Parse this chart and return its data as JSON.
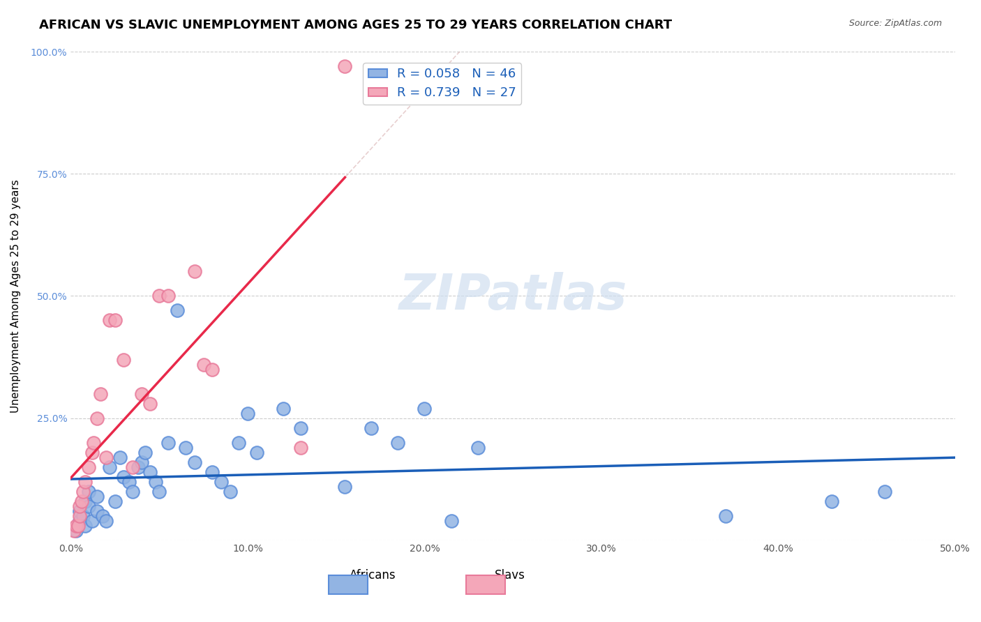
{
  "title": "AFRICAN VS SLAVIC UNEMPLOYMENT AMONG AGES 25 TO 29 YEARS CORRELATION CHART",
  "source": "Source: ZipAtlas.com",
  "xlabel": "",
  "ylabel": "Unemployment Among Ages 25 to 29 years",
  "xlim": [
    0,
    0.5
  ],
  "ylim": [
    0,
    1.0
  ],
  "xticks": [
    0.0,
    0.1,
    0.2,
    0.3,
    0.4,
    0.5
  ],
  "yticks": [
    0.0,
    0.25,
    0.5,
    0.75,
    1.0
  ],
  "xticklabels": [
    "0.0%",
    "10.0%",
    "20.0%",
    "30.0%",
    "40.0%",
    "50.0%"
  ],
  "yticklabels": [
    "",
    "25.0%",
    "50.0%",
    "75.0%",
    "100.0%"
  ],
  "african_color": "#92b4e3",
  "slav_color": "#f4a7b9",
  "african_edge_color": "#5b8dd9",
  "slav_edge_color": "#e87a9a",
  "trend_african_color": "#1a5eb8",
  "trend_slav_color": "#e8294a",
  "r_african": 0.058,
  "n_african": 46,
  "r_slav": 0.739,
  "n_slav": 27,
  "legend_r_color": "#1a5eb8",
  "legend_label1": "Africans",
  "legend_label2": "Slavs",
  "watermark": "ZIPatlas",
  "africans_x": [
    0.003,
    0.005,
    0.005,
    0.007,
    0.008,
    0.008,
    0.01,
    0.01,
    0.012,
    0.015,
    0.015,
    0.018,
    0.02,
    0.022,
    0.025,
    0.028,
    0.03,
    0.033,
    0.035,
    0.038,
    0.04,
    0.042,
    0.045,
    0.048,
    0.05,
    0.055,
    0.06,
    0.065,
    0.07,
    0.08,
    0.085,
    0.09,
    0.095,
    0.1,
    0.105,
    0.12,
    0.13,
    0.155,
    0.17,
    0.185,
    0.2,
    0.215,
    0.23,
    0.37,
    0.43,
    0.46
  ],
  "africans_y": [
    0.02,
    0.04,
    0.06,
    0.05,
    0.03,
    0.08,
    0.07,
    0.1,
    0.04,
    0.06,
    0.09,
    0.05,
    0.04,
    0.15,
    0.08,
    0.17,
    0.13,
    0.12,
    0.1,
    0.15,
    0.16,
    0.18,
    0.14,
    0.12,
    0.1,
    0.2,
    0.47,
    0.19,
    0.16,
    0.14,
    0.12,
    0.1,
    0.2,
    0.26,
    0.18,
    0.27,
    0.23,
    0.11,
    0.23,
    0.2,
    0.27,
    0.04,
    0.19,
    0.05,
    0.08,
    0.1
  ],
  "slavs_x": [
    0.002,
    0.003,
    0.004,
    0.005,
    0.005,
    0.006,
    0.007,
    0.008,
    0.01,
    0.012,
    0.013,
    0.015,
    0.017,
    0.02,
    0.022,
    0.025,
    0.03,
    0.035,
    0.04,
    0.045,
    0.05,
    0.055,
    0.07,
    0.075,
    0.08,
    0.13,
    0.155
  ],
  "slavs_y": [
    0.02,
    0.03,
    0.03,
    0.05,
    0.07,
    0.08,
    0.1,
    0.12,
    0.15,
    0.18,
    0.2,
    0.25,
    0.3,
    0.17,
    0.45,
    0.45,
    0.37,
    0.15,
    0.3,
    0.28,
    0.5,
    0.5,
    0.55,
    0.36,
    0.35,
    0.19,
    0.97
  ]
}
